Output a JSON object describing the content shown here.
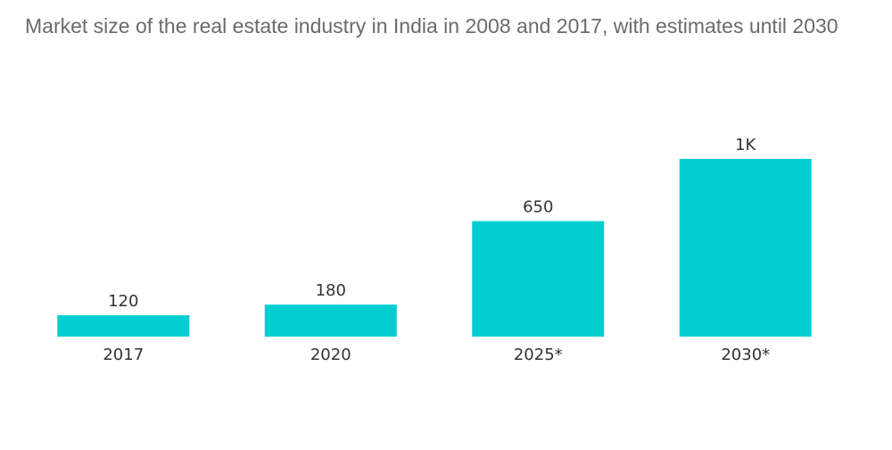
{
  "chart_data": {
    "type": "bar",
    "title": "Market size of the real estate industry in India in 2008 and 2017, with estimates until 2030",
    "categories": [
      "2017",
      "2020",
      "2025*",
      "2030*"
    ],
    "values": [
      120,
      180,
      650,
      1000
    ],
    "data_labels": [
      "120",
      "180",
      "650",
      "1K"
    ],
    "xlabel": "",
    "ylabel": "",
    "ylim": [
      0,
      1000
    ],
    "grid": false,
    "legend": "none",
    "colors": {
      "bar": "#00ced1",
      "label_text": "#333333",
      "title_text": "#6b6b6b",
      "axis_line": "#cccccc"
    }
  }
}
